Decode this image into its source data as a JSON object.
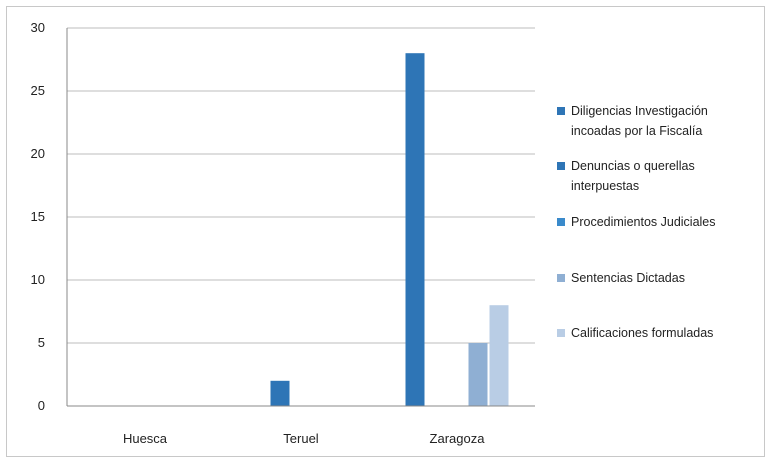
{
  "chart_data": {
    "type": "bar",
    "title": "",
    "xlabel": "",
    "ylabel": "",
    "ylim": [
      0,
      30
    ],
    "yticks": [
      0,
      5,
      10,
      15,
      20,
      25,
      30
    ],
    "categories": [
      "Huesca",
      "Teruel",
      "Zaragoza"
    ],
    "grid": "horizontal",
    "legend_position": "right",
    "series": [
      {
        "name": "Diligencias Investigación incoadas por la Fiscalía",
        "values": [
          0,
          0,
          28
        ],
        "color": "#2E75B6"
      },
      {
        "name": "Denuncias o querellas interpuestas",
        "values": [
          0,
          2,
          0
        ],
        "color": "#2E75B6"
      },
      {
        "name": "Procedimientos Judiciales",
        "values": [
          0,
          0,
          0
        ],
        "color": "#3A8ACB"
      },
      {
        "name": "Sentencias Dictadas",
        "values": [
          0,
          0,
          5
        ],
        "color": "#8FAFD3"
      },
      {
        "name": "Calificaciones formuladas",
        "values": [
          0,
          0,
          8
        ],
        "color": "#B9CDE5"
      }
    ]
  }
}
